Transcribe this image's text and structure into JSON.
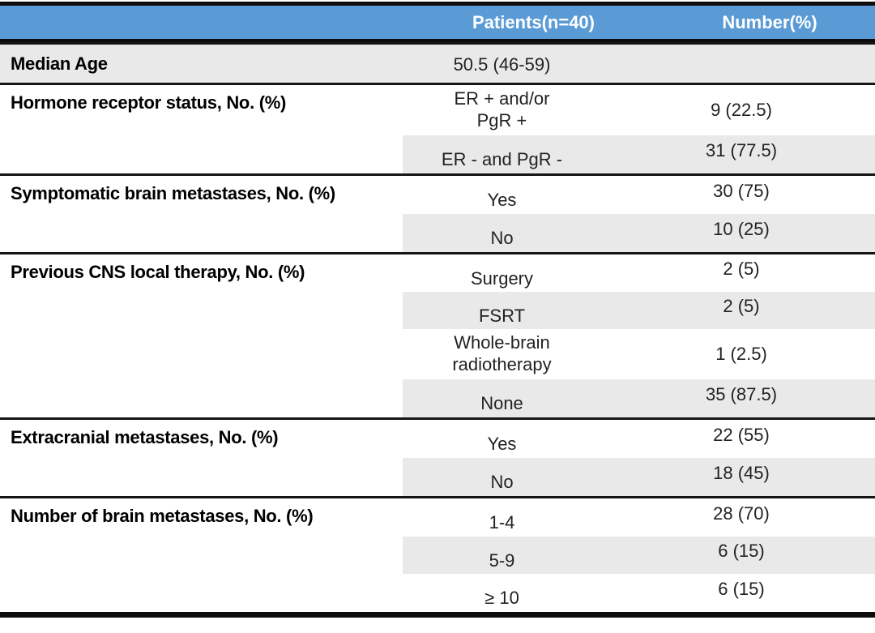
{
  "header": {
    "patients": "Patients(n=40)",
    "number": "Number(%)"
  },
  "colors": {
    "header_bg": "#5b9bd5",
    "header_text": "#ffffff",
    "shaded_row": "#e9e9e9",
    "border": "#0c0c0c"
  },
  "sections": [
    {
      "label": "Median Age",
      "rows": [
        {
          "value": "50.5 (46-59)",
          "number": ""
        }
      ]
    },
    {
      "label": "Hormone receptor status, No. (%)",
      "rows": [
        {
          "value": "ER + and/or",
          "value2": "PgR +",
          "number": "9 (22.5)"
        },
        {
          "value": "ER - and PgR -",
          "number": "31 (77.5)"
        }
      ]
    },
    {
      "label": "Symptomatic brain metastases, No. (%)",
      "rows": [
        {
          "value": "Yes",
          "number": "30 (75)"
        },
        {
          "value": "No",
          "number": "10 (25)"
        }
      ]
    },
    {
      "label": "Previous CNS local therapy, No. (%)",
      "rows": [
        {
          "value": "Surgery",
          "number": "2 (5)"
        },
        {
          "value": "FSRT",
          "number": "2 (5)"
        },
        {
          "value": "Whole-brain",
          "value2": "radiotherapy",
          "number": "1 (2.5)"
        },
        {
          "value": "None",
          "number": "35 (87.5)"
        }
      ]
    },
    {
      "label": "Extracranial metastases, No. (%)",
      "rows": [
        {
          "value": "Yes",
          "number": "22 (55)"
        },
        {
          "value": "No",
          "number": "18 (45)"
        }
      ]
    },
    {
      "label": "Number of brain metastases, No. (%)",
      "rows": [
        {
          "value": "1-4",
          "number": "28 (70)"
        },
        {
          "value": "5-9",
          "number": "6 (15)"
        },
        {
          "value": "≥ 10",
          "number": "6 (15)"
        }
      ]
    }
  ]
}
